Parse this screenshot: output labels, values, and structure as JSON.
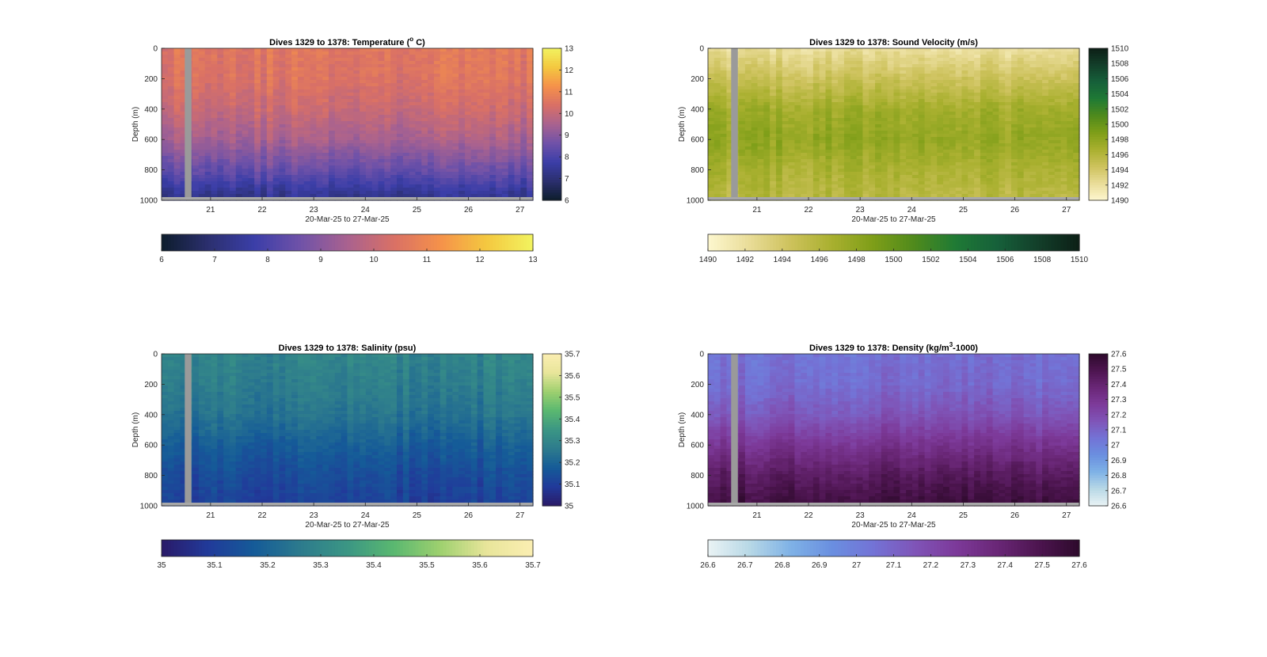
{
  "chart_data": [
    {
      "id": "temperature",
      "type": "heatmap",
      "title": "Dives 1329 to 1378: Temperature (",
      "title_sup": "o",
      "title_suffix": " C)",
      "xlabel": "20-Mar-25 to 27-Mar-25",
      "ylabel": "Depth (m)",
      "xlim": [
        20.05,
        27.25
      ],
      "x_ticks": [
        21,
        22,
        23,
        24,
        25,
        26,
        27
      ],
      "ylim": [
        0,
        1000
      ],
      "y_ticks": [
        0,
        200,
        400,
        600,
        800,
        1000
      ],
      "y_reversed": true,
      "gap_x": [
        20.5,
        20.63
      ],
      "depth_profile": [
        {
          "depth": 0,
          "value": 10.6
        },
        {
          "depth": 200,
          "value": 10.5
        },
        {
          "depth": 400,
          "value": 10.1
        },
        {
          "depth": 600,
          "value": 9.5
        },
        {
          "depth": 800,
          "value": 8.5
        },
        {
          "depth": 950,
          "value": 7.5
        },
        {
          "depth": 1000,
          "value": 7.2
        }
      ],
      "colorbar": {
        "range": [
          6,
          13
        ],
        "ticks": [
          6,
          7,
          8,
          9,
          10,
          11,
          12,
          13
        ],
        "stops": [
          "#0d1d2c",
          "#2b2f6e",
          "#3b3ea8",
          "#7052a8",
          "#a9628f",
          "#d97066",
          "#f5914a",
          "#f4c840",
          "#f2f35f"
        ]
      }
    },
    {
      "id": "sound-velocity",
      "type": "heatmap",
      "title": "Dives 1329 to 1378: Sound Velocity (m/s)",
      "xlabel": "20-Mar-25 to 27-Mar-25",
      "ylabel": "Depth (m)",
      "xlim": [
        20.05,
        27.25
      ],
      "x_ticks": [
        21,
        22,
        23,
        24,
        25,
        26,
        27
      ],
      "ylim": [
        0,
        1000
      ],
      "y_ticks": [
        0,
        200,
        400,
        600,
        800,
        1000
      ],
      "y_reversed": true,
      "gap_x": [
        20.5,
        20.63
      ],
      "depth_profile": [
        {
          "depth": 0,
          "value": 1492.0
        },
        {
          "depth": 200,
          "value": 1494.5
        },
        {
          "depth": 400,
          "value": 1497.0
        },
        {
          "depth": 600,
          "value": 1497.8
        },
        {
          "depth": 800,
          "value": 1496.5
        },
        {
          "depth": 1000,
          "value": 1495.5
        }
      ],
      "colorbar": {
        "range": [
          1490,
          1510
        ],
        "ticks": [
          1490,
          1492,
          1494,
          1496,
          1498,
          1500,
          1502,
          1504,
          1506,
          1508,
          1510
        ],
        "stops": [
          "#fdf7cf",
          "#e9dc98",
          "#cdc25c",
          "#a9b02f",
          "#7e9e18",
          "#4f8a1c",
          "#1f7a35",
          "#16603a",
          "#133f2a",
          "#0c1f16"
        ]
      }
    },
    {
      "id": "salinity",
      "type": "heatmap",
      "title": "Dives 1329 to 1378: Salinity (psu)",
      "xlabel": "20-Mar-25 to 27-Mar-25",
      "ylabel": "Depth (m)",
      "xlim": [
        20.05,
        27.25
      ],
      "x_ticks": [
        21,
        22,
        23,
        24,
        25,
        26,
        27
      ],
      "ylim": [
        0,
        1000
      ],
      "y_ticks": [
        0,
        200,
        400,
        600,
        800,
        1000
      ],
      "y_reversed": true,
      "gap_x": [
        20.5,
        20.63
      ],
      "depth_profile": [
        {
          "depth": 0,
          "value": 35.29
        },
        {
          "depth": 200,
          "value": 35.27
        },
        {
          "depth": 400,
          "value": 35.24
        },
        {
          "depth": 600,
          "value": 35.18
        },
        {
          "depth": 800,
          "value": 35.13
        },
        {
          "depth": 1000,
          "value": 35.1
        }
      ],
      "colorbar": {
        "range": [
          35,
          35.7
        ],
        "ticks": [
          35,
          35.1,
          35.2,
          35.3,
          35.4,
          35.5,
          35.6,
          35.7
        ],
        "stops": [
          "#2a1a68",
          "#213a9a",
          "#155b98",
          "#2d7b8d",
          "#3b9684",
          "#5ab870",
          "#9ed06f",
          "#e8e59a",
          "#fbeeb2"
        ]
      }
    },
    {
      "id": "density",
      "type": "heatmap",
      "title": "Dives 1329 to 1378: Density (kg/m",
      "title_sup": "3",
      "title_suffix": "-1000)",
      "xlabel": "20-Mar-25 to 27-Mar-25",
      "ylabel": "Depth (m)",
      "xlim": [
        20.05,
        27.25
      ],
      "x_ticks": [
        21,
        22,
        23,
        24,
        25,
        26,
        27
      ],
      "ylim": [
        0,
        1000
      ],
      "y_ticks": [
        0,
        200,
        400,
        600,
        800,
        1000
      ],
      "y_reversed": true,
      "gap_x": [
        20.5,
        20.63
      ],
      "depth_profile": [
        {
          "depth": 0,
          "value": 27.05
        },
        {
          "depth": 200,
          "value": 27.07
        },
        {
          "depth": 400,
          "value": 27.15
        },
        {
          "depth": 600,
          "value": 27.3
        },
        {
          "depth": 800,
          "value": 27.45
        },
        {
          "depth": 1000,
          "value": 27.55
        }
      ],
      "colorbar": {
        "range": [
          26.6,
          27.6
        ],
        "ticks": [
          26.6,
          26.7,
          26.8,
          26.9,
          27,
          27.1,
          27.2,
          27.3,
          27.4,
          27.5,
          27.6
        ],
        "stops": [
          "#eaf3f5",
          "#b8d8e6",
          "#7fb2e6",
          "#6a8fe0",
          "#7373d6",
          "#7f55b8",
          "#7d3a9a",
          "#6a2777",
          "#4d1550",
          "#2e0a2c"
        ]
      }
    }
  ]
}
